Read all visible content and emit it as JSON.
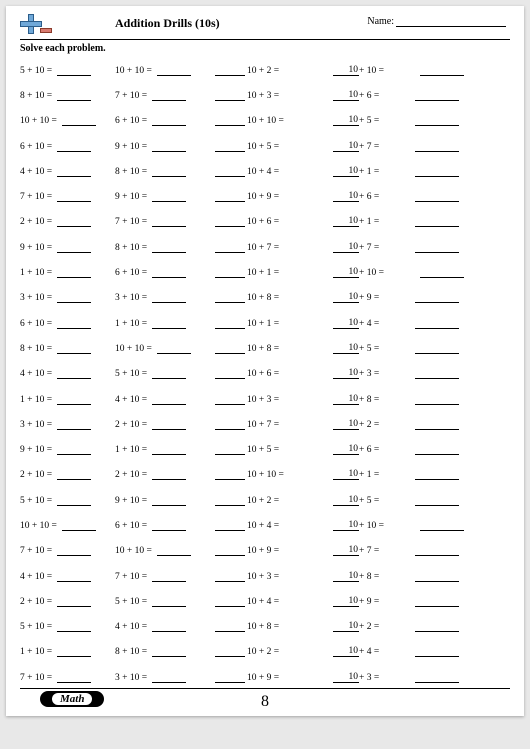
{
  "header": {
    "title": "Addition Drills (10s)",
    "name_label": "Name:"
  },
  "instruction": "Solve each problem.",
  "footer": {
    "badge": "Math",
    "page_number": "8"
  },
  "columns": {
    "col1": [
      "5 + 10 =",
      "8 + 10 =",
      "10 + 10 =",
      "6 + 10 =",
      "4 + 10 =",
      "7 + 10 =",
      "2 + 10 =",
      "9 + 10 =",
      "1 + 10 =",
      "3 + 10 =",
      "6 + 10 =",
      "8 + 10 =",
      "4 + 10 =",
      "1 + 10 =",
      "3 + 10 =",
      "9 + 10 =",
      "2 + 10 =",
      "5 + 10 =",
      "10 + 10 =",
      "7 + 10 =",
      "4 + 10 =",
      "2 + 10 =",
      "5 + 10 =",
      "1 + 10 =",
      "7 + 10 ="
    ],
    "col2": [
      "10 + 10 =",
      "7 + 10 =",
      "6 + 10 =",
      "9 + 10 =",
      "8 + 10 =",
      "9 + 10 =",
      "7 + 10 =",
      "8 + 10 =",
      "6 + 10 =",
      "3 + 10 =",
      "1 + 10 =",
      "10 + 10 =",
      "5 + 10 =",
      "4 + 10 =",
      "2 + 10 =",
      "1 + 10 =",
      "2 + 10 =",
      "9 + 10 =",
      "6 + 10 =",
      "10 + 10 =",
      "7 + 10 =",
      "5 + 10 =",
      "4 + 10 =",
      "8 + 10 =",
      "3 + 10 ="
    ],
    "col3": [
      "10 + 2 =",
      "10 + 3 =",
      "10 + 10 =",
      "10 + 5 =",
      "10 + 4 =",
      "10 + 9 =",
      "10 + 6 =",
      "10 + 7 =",
      "10 + 1 =",
      "10 + 8 =",
      "10 + 1 =",
      "10 + 8 =",
      "10 + 6 =",
      "10 + 3 =",
      "10 + 7 =",
      "10 + 5 =",
      "10 + 10 =",
      "10 + 2 =",
      "10 + 4 =",
      "10 + 9 =",
      "10 + 3 =",
      "10 + 4 =",
      "10 + 8 =",
      "10 + 2 =",
      "10 + 9 ="
    ],
    "col4": [
      {
        "a": "10",
        "rest": " + 10 ="
      },
      {
        "a": "10",
        "rest": " + 6 ="
      },
      {
        "a": "10",
        "rest": " + 5 ="
      },
      {
        "a": "10",
        "rest": " + 7 ="
      },
      {
        "a": "10",
        "rest": " + 1 ="
      },
      {
        "a": "10",
        "rest": " + 6 ="
      },
      {
        "a": "10",
        "rest": " + 1 ="
      },
      {
        "a": "10",
        "rest": " + 7 ="
      },
      {
        "a": "10",
        "rest": " + 10 ="
      },
      {
        "a": "10",
        "rest": " + 9 ="
      },
      {
        "a": "10",
        "rest": " + 4 ="
      },
      {
        "a": "10",
        "rest": " + 5 ="
      },
      {
        "a": "10",
        "rest": " + 3 ="
      },
      {
        "a": "10",
        "rest": " + 8 ="
      },
      {
        "a": "10",
        "rest": " + 2 ="
      },
      {
        "a": "10",
        "rest": " + 6 ="
      },
      {
        "a": "10",
        "rest": " + 1 ="
      },
      {
        "a": "10",
        "rest": " + 5 ="
      },
      {
        "a": "10",
        "rest": " + 10 ="
      },
      {
        "a": "10",
        "rest": " + 7 ="
      },
      {
        "a": "10",
        "rest": " + 8 ="
      },
      {
        "a": "10",
        "rest": " + 9 ="
      },
      {
        "a": "10",
        "rest": " + 2 ="
      },
      {
        "a": "10",
        "rest": " + 4 ="
      },
      {
        "a": "10",
        "rest": " + 3 ="
      }
    ]
  }
}
